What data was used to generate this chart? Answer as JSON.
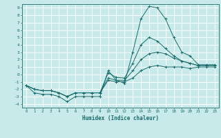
{
  "title": "",
  "xlabel": "Humidex (Indice chaleur)",
  "bg_color": "#c8eaea",
  "grid_color": "#ffffff",
  "line_color": "#1a6b6b",
  "x": [
    0,
    1,
    2,
    3,
    4,
    5,
    6,
    7,
    8,
    9,
    10,
    11,
    12,
    13,
    14,
    15,
    16,
    17,
    18,
    19,
    20,
    21,
    22,
    23
  ],
  "series1": [
    -1.5,
    -2.5,
    -2.7,
    -2.7,
    -3.0,
    -3.7,
    -3.0,
    -3.0,
    -3.0,
    -3.0,
    0.5,
    -0.8,
    -1.2,
    3.0,
    7.5,
    9.2,
    9.0,
    7.5,
    5.0,
    3.0,
    2.5,
    1.3,
    1.3,
    1.3
  ],
  "series2": [
    -1.5,
    -2.0,
    -2.2,
    -2.2,
    -2.5,
    -3.0,
    -2.5,
    -2.5,
    -2.5,
    -2.5,
    0.2,
    -0.4,
    -0.5,
    1.5,
    4.0,
    5.0,
    4.5,
    3.5,
    2.5,
    1.8,
    1.5,
    1.2,
    1.2,
    1.2
  ],
  "series3": [
    -1.5,
    -2.0,
    -2.2,
    -2.2,
    -2.5,
    -3.0,
    -2.5,
    -2.5,
    -2.5,
    -2.5,
    -0.5,
    -0.8,
    -0.8,
    0.5,
    2.0,
    2.8,
    3.0,
    2.8,
    2.2,
    1.8,
    1.5,
    1.2,
    1.2,
    1.2
  ],
  "series4": [
    -1.5,
    -2.0,
    -2.2,
    -2.2,
    -2.5,
    -3.0,
    -2.5,
    -2.5,
    -2.5,
    -2.5,
    -0.8,
    -1.0,
    -1.0,
    -0.5,
    0.5,
    1.0,
    1.2,
    1.0,
    1.0,
    1.0,
    0.8,
    1.0,
    1.0,
    1.0
  ],
  "ylim": [
    -4.5,
    9.5
  ],
  "xlim": [
    -0.5,
    23.5
  ],
  "yticks": [
    -4,
    -3,
    -2,
    -1,
    0,
    1,
    2,
    3,
    4,
    5,
    6,
    7,
    8,
    9
  ]
}
